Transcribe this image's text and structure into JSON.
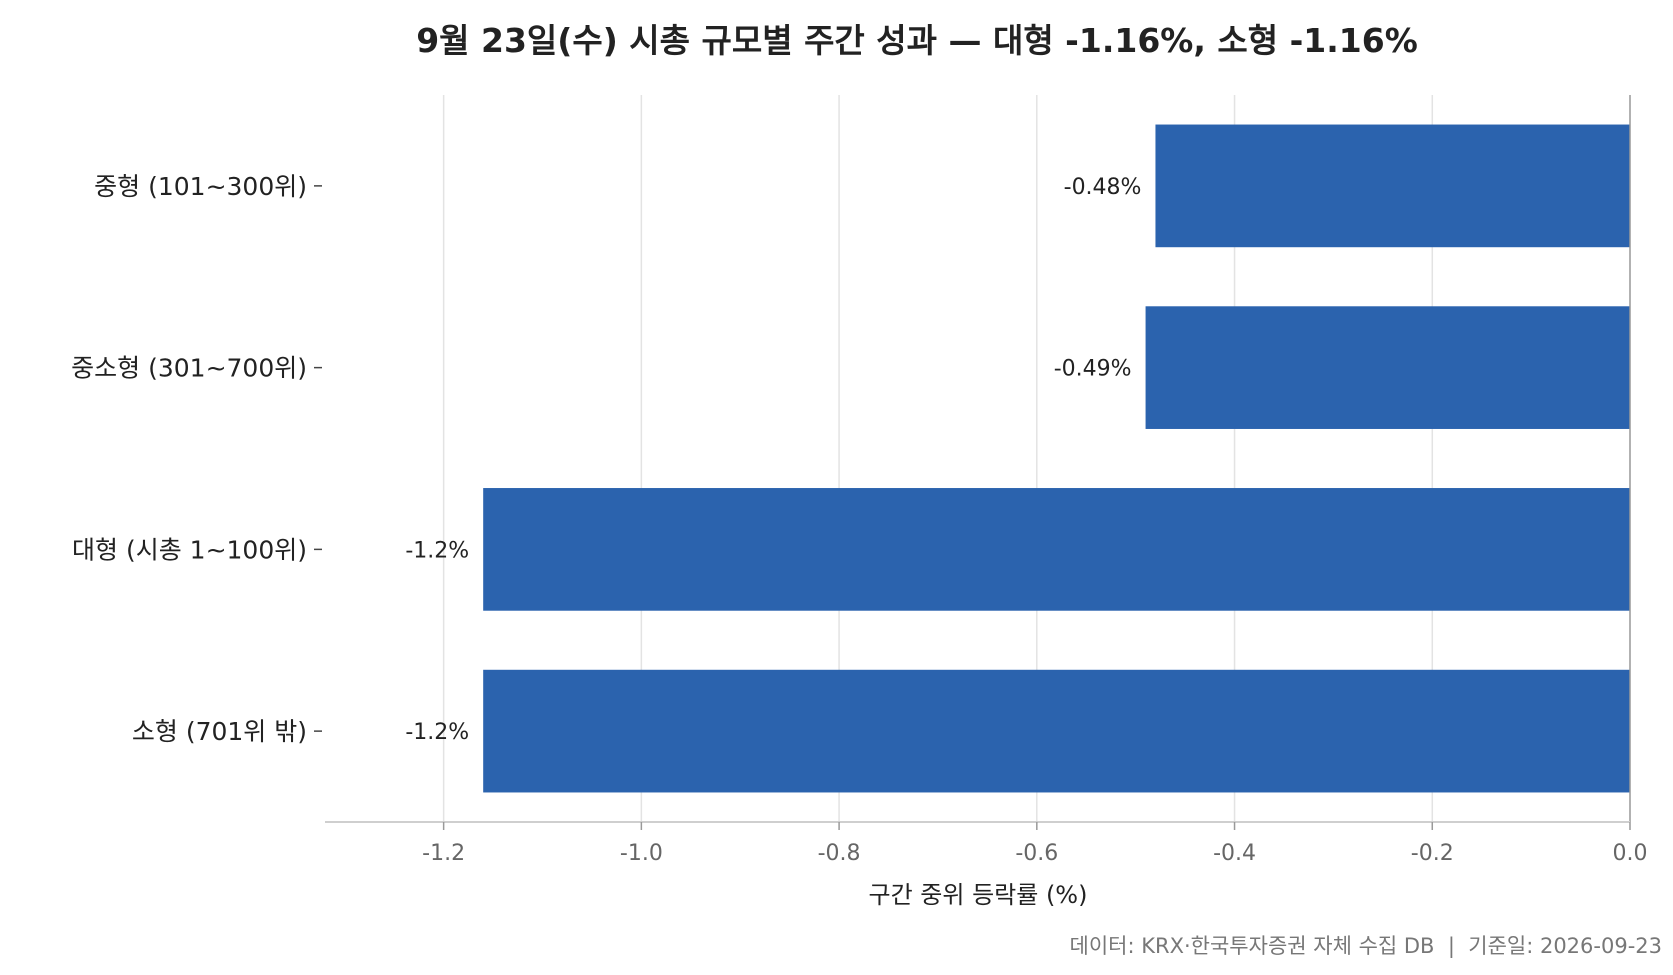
{
  "chart_data": {
    "type": "bar",
    "orientation": "horizontal",
    "title": "9월 23일(수) 시총 규모별 주간 성과 — 대형 -1.16%, 소형 -1.16%",
    "categories": [
      "중형 (101~300위)",
      "중소형 (301~700위)",
      "대형 (시총 1~100위)",
      "소형 (701위 밖)"
    ],
    "values": [
      -0.48,
      -0.49,
      -1.16,
      -1.16
    ],
    "data_labels": [
      "-0.48%",
      "-0.49%",
      "-1.2%",
      "-1.2%"
    ],
    "xlabel": "구간 중위 등락률 (%)",
    "ylabel": "",
    "xlim": [
      -1.32,
      0.0
    ],
    "xticks": [
      -1.2,
      -1.0,
      -0.8,
      -0.6,
      -0.4,
      -0.2,
      0.0
    ],
    "xtick_labels": [
      "-1.2",
      "-1.0",
      "-0.8",
      "-0.6",
      "-0.4",
      "-0.2",
      "0.0"
    ],
    "grid": "vertical",
    "bar_color": "#2b63ae",
    "footer": "데이터: KRX·한국투자증권 자체 수집 DB  |  기준일: 2026-09-23"
  }
}
